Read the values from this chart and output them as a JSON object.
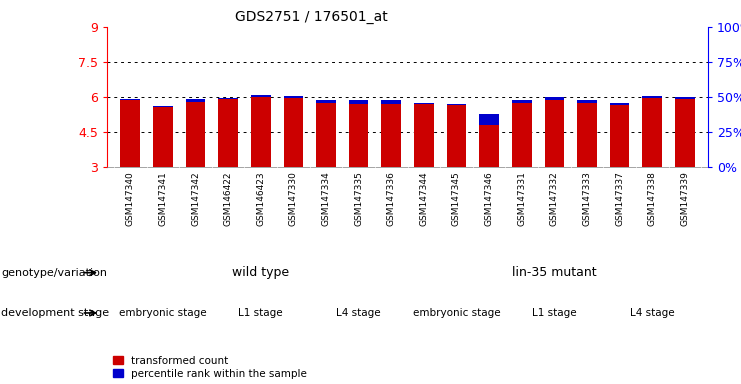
{
  "title": "GDS2751 / 176501_at",
  "samples": [
    "GSM147340",
    "GSM147341",
    "GSM147342",
    "GSM146422",
    "GSM146423",
    "GSM147330",
    "GSM147334",
    "GSM147335",
    "GSM147336",
    "GSM147344",
    "GSM147345",
    "GSM147346",
    "GSM147331",
    "GSM147332",
    "GSM147333",
    "GSM147337",
    "GSM147338",
    "GSM147339"
  ],
  "red_values": [
    5.9,
    5.55,
    5.9,
    5.95,
    6.1,
    6.05,
    5.85,
    5.85,
    5.85,
    5.75,
    5.7,
    4.8,
    5.85,
    6.0,
    5.85,
    5.75,
    6.05,
    6.0
  ],
  "blue_values": [
    5.85,
    5.6,
    5.78,
    5.9,
    6.0,
    5.95,
    5.75,
    5.72,
    5.72,
    5.7,
    5.64,
    5.28,
    5.75,
    5.88,
    5.74,
    5.64,
    5.95,
    5.9
  ],
  "y_min": 3.0,
  "y_max": 9.0,
  "y_ticks_left": [
    3,
    4.5,
    6,
    7.5,
    9
  ],
  "y_ticks_right": [
    0,
    25,
    50,
    75,
    100
  ],
  "dotted_lines": [
    4.5,
    6.0,
    7.5
  ],
  "bar_color_red": "#cc0000",
  "bar_color_blue": "#0000cc",
  "bar_width": 0.6,
  "genotype_label": "genotype/variation",
  "dev_stage_label": "development stage",
  "group1_label": "wild type",
  "group2_label": "lin-35 mutant",
  "genotype_colors": [
    "#b0f0b0",
    "#66dd66"
  ],
  "dev_stage_colors_even": "#ee88ee",
  "dev_stage_colors_odd": "#cc44cc",
  "dev_stages": [
    {
      "label": "embryonic stage",
      "start": 0,
      "end": 3,
      "shade": 0
    },
    {
      "label": "L1 stage",
      "start": 3,
      "end": 6,
      "shade": 1
    },
    {
      "label": "L4 stage",
      "start": 6,
      "end": 9,
      "shade": 0
    },
    {
      "label": "embryonic stage",
      "start": 9,
      "end": 12,
      "shade": 0
    },
    {
      "label": "L1 stage",
      "start": 12,
      "end": 15,
      "shade": 1
    },
    {
      "label": "L4 stage",
      "start": 15,
      "end": 18,
      "shade": 0
    }
  ],
  "legend_items": [
    {
      "label": "transformed count",
      "color": "#cc0000"
    },
    {
      "label": "percentile rank within the sample",
      "color": "#0000cc"
    }
  ],
  "bg_color": "#ffffff",
  "tick_label_bg": "#d8d8d8",
  "n_samples": 18
}
